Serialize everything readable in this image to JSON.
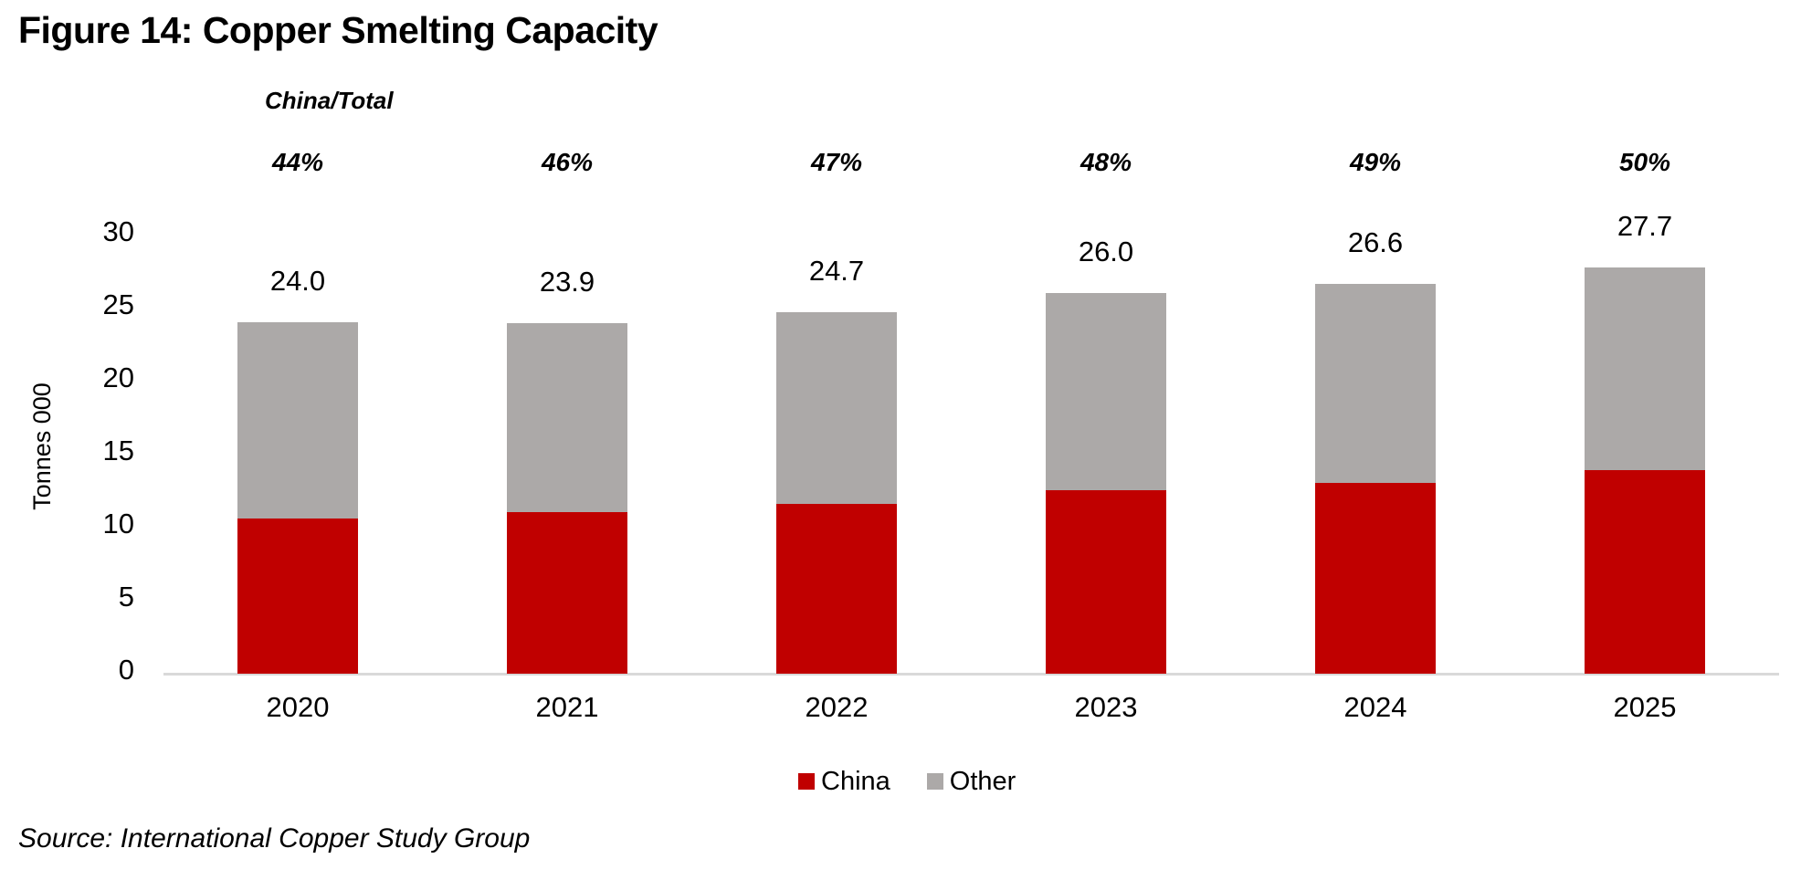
{
  "title": "Figure 14: Copper Smelting Capacity",
  "annotation_header": "China/Total",
  "source": "Source: International Copper Study Group",
  "y_axis": {
    "label": "Tonnes 000",
    "ticks": [
      0,
      5,
      10,
      15,
      20,
      25,
      30
    ]
  },
  "legend": [
    {
      "label": "China",
      "color": "#C00000"
    },
    {
      "label": "Other",
      "color": "#ACA9A8"
    }
  ],
  "chart_data": {
    "type": "bar",
    "stacked": true,
    "title": "Figure 14: Copper Smelting Capacity",
    "xlabel": "",
    "ylabel": "Tonnes 000",
    "ylim": [
      0,
      30
    ],
    "y_tick_step": 5,
    "grid": false,
    "legend_position": "bottom",
    "categories": [
      "2020",
      "2021",
      "2022",
      "2023",
      "2024",
      "2025"
    ],
    "series": [
      {
        "name": "China",
        "color": "#C00000",
        "values": [
          10.6,
          11.0,
          11.6,
          12.5,
          13.0,
          13.9
        ]
      },
      {
        "name": "Other",
        "color": "#ACA9A8",
        "values": [
          13.4,
          12.9,
          13.1,
          13.5,
          13.6,
          13.8
        ]
      }
    ],
    "total_labels": [
      "24.0",
      "23.9",
      "24.7",
      "26.0",
      "26.6",
      "27.7"
    ],
    "china_share_labels": [
      "44%",
      "46%",
      "47%",
      "48%",
      "49%",
      "50%"
    ],
    "annotations": {
      "share_header": "China/Total"
    }
  }
}
